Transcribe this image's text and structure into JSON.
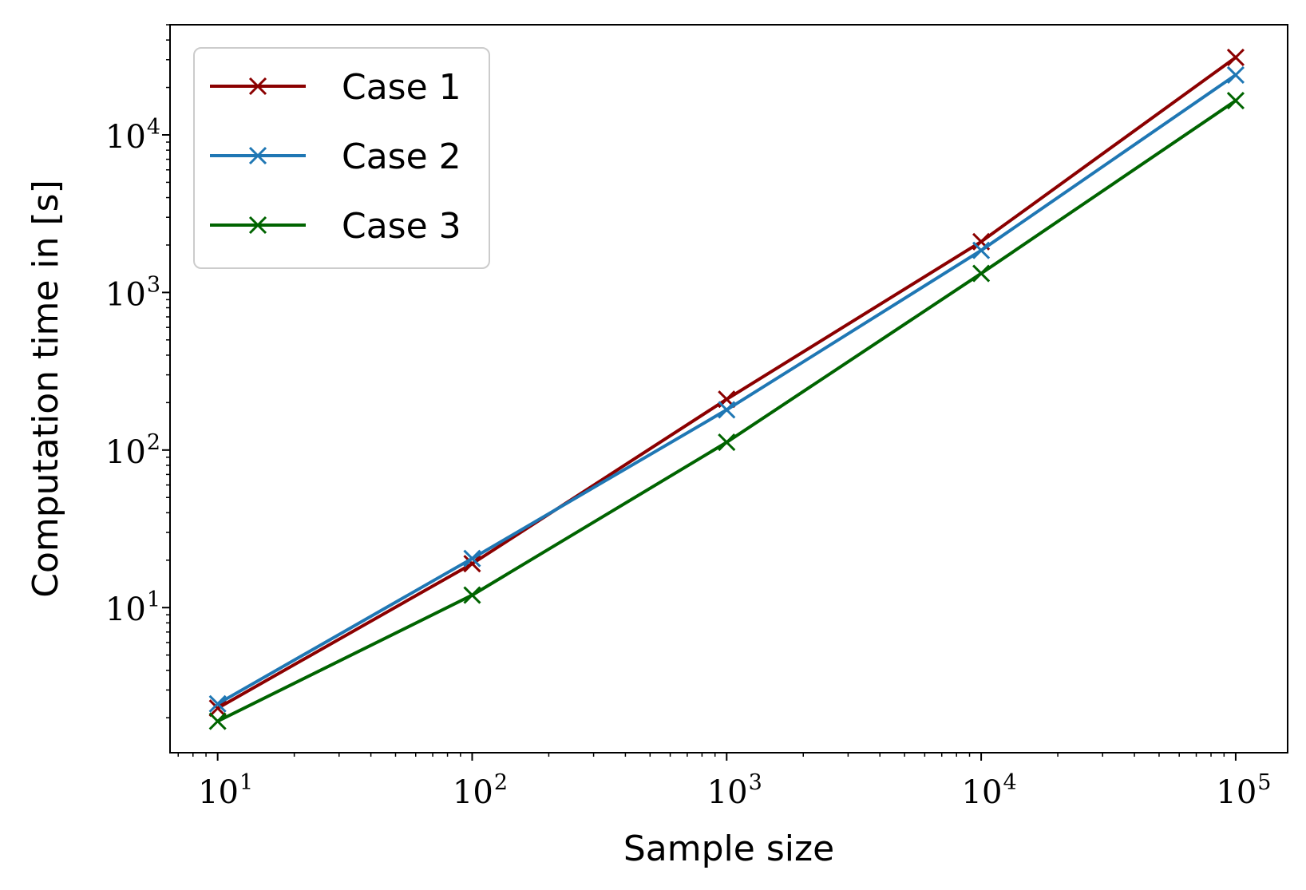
{
  "chart_data": {
    "type": "line",
    "xlabel": "Sample size",
    "ylabel": "Computation time in [s]",
    "x_scale": "log",
    "y_scale": "log",
    "xlim": [
      6.5,
      160000
    ],
    "ylim": [
      1.2,
      50000
    ],
    "x_ticks": [
      {
        "value": 10,
        "base": "10",
        "exp": "1"
      },
      {
        "value": 100,
        "base": "10",
        "exp": "2"
      },
      {
        "value": 1000,
        "base": "10",
        "exp": "3"
      },
      {
        "value": 10000,
        "base": "10",
        "exp": "4"
      },
      {
        "value": 100000,
        "base": "10",
        "exp": "5"
      }
    ],
    "y_ticks": [
      {
        "value": 10,
        "base": "10",
        "exp": "1"
      },
      {
        "value": 100,
        "base": "10",
        "exp": "2"
      },
      {
        "value": 1000,
        "base": "10",
        "exp": "3"
      },
      {
        "value": 10000,
        "base": "10",
        "exp": "4"
      }
    ],
    "grid": false,
    "legend_position": "top-left",
    "marker": "x",
    "x": [
      10,
      100,
      1000,
      10000,
      100000
    ],
    "series": [
      {
        "name": "Case 1",
        "color": "#8b0000",
        "values": [
          2.3,
          19,
          210,
          2100,
          31000
        ]
      },
      {
        "name": "Case 2",
        "color": "#1f77b4",
        "values": [
          2.45,
          20.5,
          180,
          1850,
          24000
        ]
      },
      {
        "name": "Case 3",
        "color": "#006400",
        "values": [
          1.9,
          12,
          112,
          1320,
          16500
        ]
      }
    ]
  }
}
